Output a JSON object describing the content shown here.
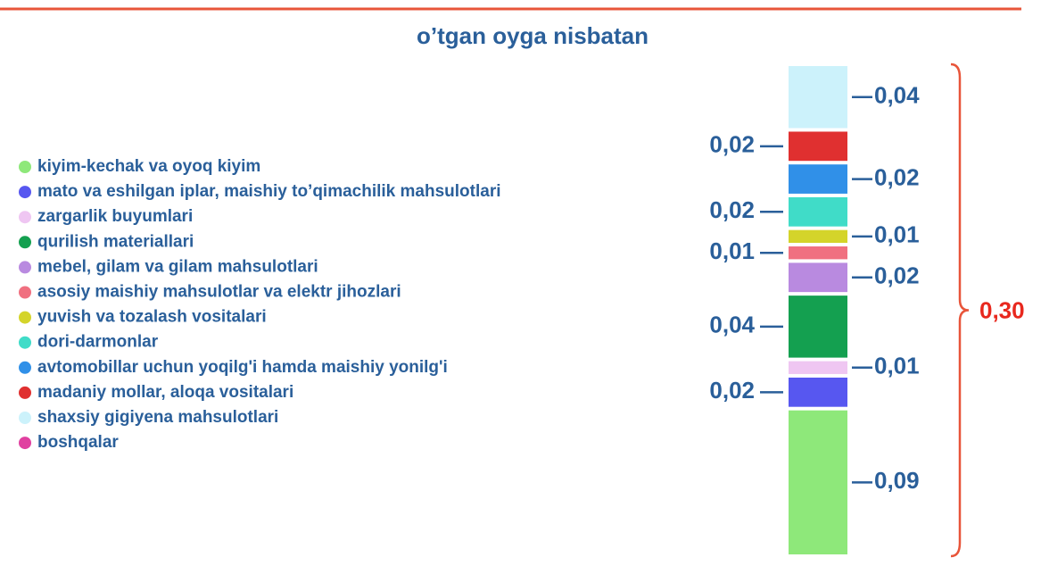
{
  "chart_data": {
    "type": "stacked-bar",
    "title": "o’tgan oyga nisbatan",
    "series": [
      {
        "name": "kiyim-kechak va oyoq kiyim",
        "color": "#8ee87a",
        "values": [
          0.09
        ],
        "value_labels": [
          "0,09"
        ]
      },
      {
        "name": "mato va eshilgan iplar, maishiy to’qimachilik mahsulotlari",
        "color": "#5757f0",
        "values": [
          0.02
        ],
        "value_labels": [
          "0,02"
        ]
      },
      {
        "name": "zargarlik buyumlari",
        "color": "#efc6f2",
        "values": [
          0.01
        ],
        "value_labels": [
          "0,01"
        ]
      },
      {
        "name": "qurilish materiallari",
        "color": "#14a050",
        "values": [
          0.04
        ],
        "value_labels": [
          "0,04"
        ]
      },
      {
        "name": "mebel, gilam va gilam mahsulotlari",
        "color": "#b98ae0",
        "values": [
          0.02
        ],
        "value_labels": [
          "0,02"
        ]
      },
      {
        "name": "asosiy maishiy mahsulotlar va elektr jihozlari",
        "color": "#f07080",
        "values": [
          0.01
        ],
        "value_labels": [
          "0,01"
        ]
      },
      {
        "name": "yuvish va tozalash vositalari",
        "color": "#d4d42a",
        "values": [
          0.01
        ],
        "value_labels": [
          "0,01"
        ]
      },
      {
        "name": "dori-darmonlar",
        "color": "#40dcc8",
        "values": [
          0.02
        ],
        "value_labels": [
          "0,02"
        ]
      },
      {
        "name": "avtomobillar uchun yoqilg'i hamda maishiy yonilg'i",
        "color": "#3090e8",
        "values": [
          0.02
        ],
        "value_labels": [
          "0,02"
        ]
      },
      {
        "name": "madaniy mollar, aloqa vositalari",
        "color": "#e03030",
        "values": [
          0.02
        ],
        "value_labels": [
          "0,02"
        ]
      },
      {
        "name": "shaxsiy gigiyena mahsulotlari",
        "color": "#ccf2fb",
        "values": [
          0.04
        ],
        "value_labels": [
          "0,04"
        ]
      },
      {
        "name": "boshqalar",
        "color": "#e040a0",
        "values": [
          0
        ]
      }
    ],
    "total": {
      "value": 0.3,
      "label": "0,30"
    }
  }
}
